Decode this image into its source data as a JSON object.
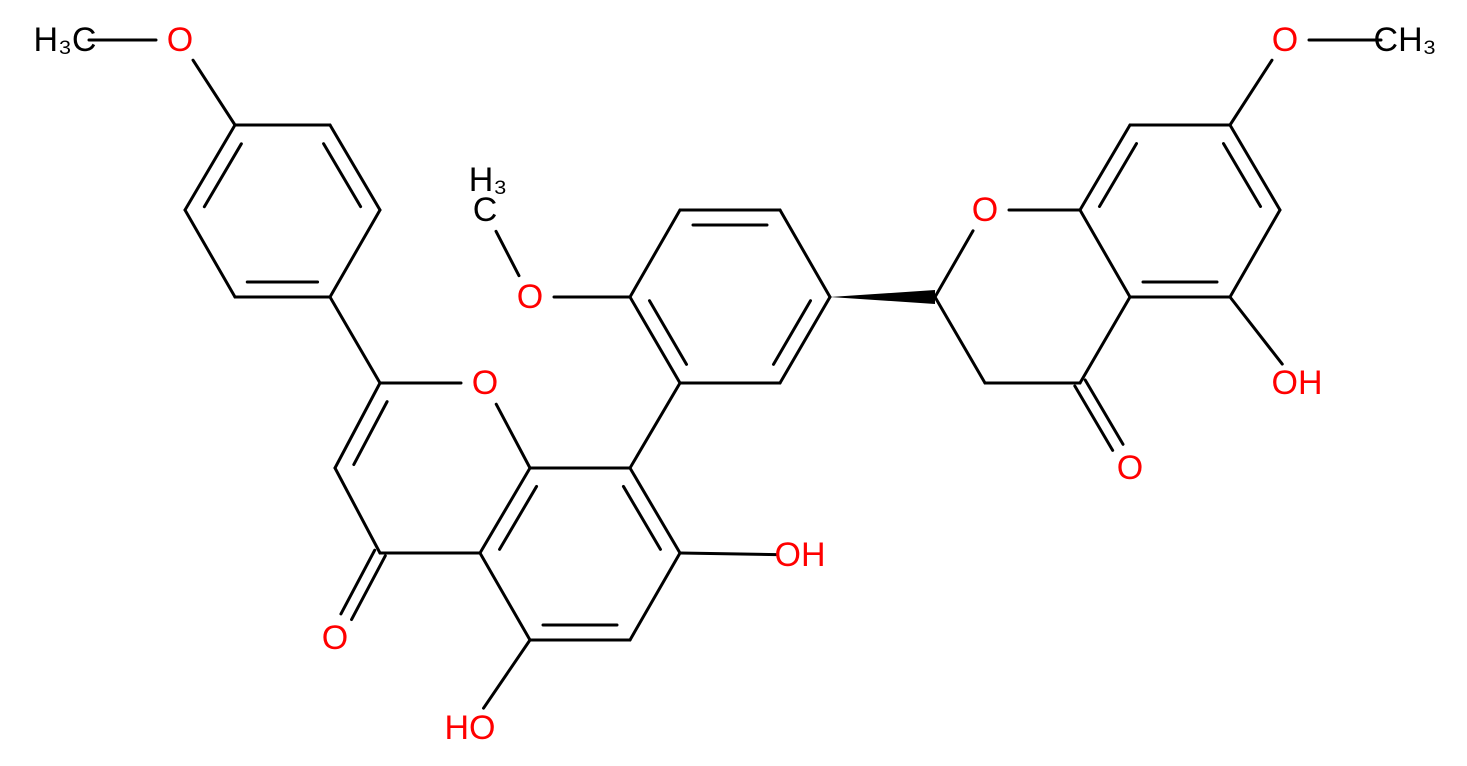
{
  "atoms": [
    {
      "label": "H₃C"
    },
    {
      "label": "O"
    },
    {
      "label": "O"
    },
    {
      "label": "CH₃"
    },
    {
      "label": "H₃"
    },
    {
      "label": "C"
    },
    {
      "label": "O"
    },
    {
      "label": "O"
    },
    {
      "label": "O"
    },
    {
      "label": "OH"
    },
    {
      "label": "O"
    },
    {
      "label": "OH"
    },
    {
      "label": "O"
    },
    {
      "label": "HO"
    }
  ]
}
